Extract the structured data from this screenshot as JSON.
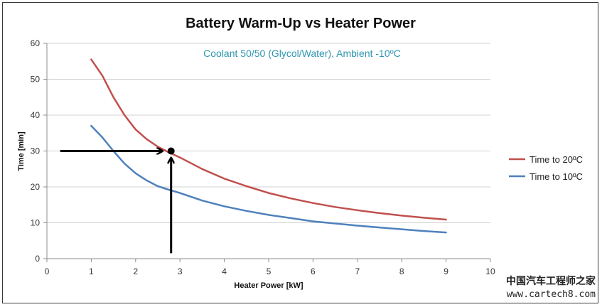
{
  "chart_data": {
    "type": "line",
    "title": "Battery Warm-Up vs Heater Power",
    "annotation": "Coolant 50/50 (Glycol/Water), Ambient -10ºC",
    "xlabel": "Heater Power [kW]",
    "ylabel": "Time [min]",
    "xlim": [
      0,
      10
    ],
    "ylim": [
      0,
      60
    ],
    "x_ticks": [
      "0",
      "1",
      "2",
      "3",
      "4",
      "5",
      "6",
      "7",
      "8",
      "9",
      "10"
    ],
    "y_ticks": [
      "0",
      "10",
      "20",
      "30",
      "40",
      "50",
      "60"
    ],
    "grid": "horizontal",
    "legend_position": "right",
    "series": [
      {
        "name": "Time to 20ºC",
        "color": "#C0504D",
        "x": [
          1.0,
          1.25,
          1.5,
          1.75,
          2.0,
          2.25,
          2.5,
          2.75,
          3.0,
          3.5,
          4.0,
          4.5,
          5.0,
          5.5,
          6.0,
          6.5,
          7.0,
          7.5,
          8.0,
          8.5,
          9.0
        ],
        "y": [
          55.5,
          51.0,
          45.0,
          40.0,
          36.0,
          33.3,
          31.2,
          29.6,
          28.2,
          25.0,
          22.3,
          20.2,
          18.3,
          16.8,
          15.5,
          14.4,
          13.5,
          12.7,
          12.0,
          11.4,
          10.9
        ]
      },
      {
        "name": "Time to 10ºC",
        "color": "#4F81BD",
        "x": [
          1.0,
          1.25,
          1.5,
          1.75,
          2.0,
          2.25,
          2.5,
          2.75,
          3.0,
          3.5,
          4.0,
          4.5,
          5.0,
          5.5,
          6.0,
          6.5,
          7.0,
          7.5,
          8.0,
          8.5,
          9.0
        ],
        "y": [
          37.0,
          33.8,
          30.0,
          26.5,
          23.8,
          21.8,
          20.2,
          19.2,
          18.3,
          16.2,
          14.6,
          13.3,
          12.2,
          11.3,
          10.4,
          9.8,
          9.2,
          8.7,
          8.2,
          7.7,
          7.3
        ]
      }
    ],
    "marker_point": {
      "x": 2.8,
      "y": 30
    },
    "arrows": [
      {
        "from": [
          0.3,
          30
        ],
        "to": [
          2.6,
          30
        ]
      },
      {
        "from": [
          2.8,
          1.5
        ],
        "to": [
          2.8,
          28
        ]
      }
    ]
  },
  "watermark": {
    "chinese": "中国汽车工程师之家",
    "url": "www.cartech8.com"
  }
}
